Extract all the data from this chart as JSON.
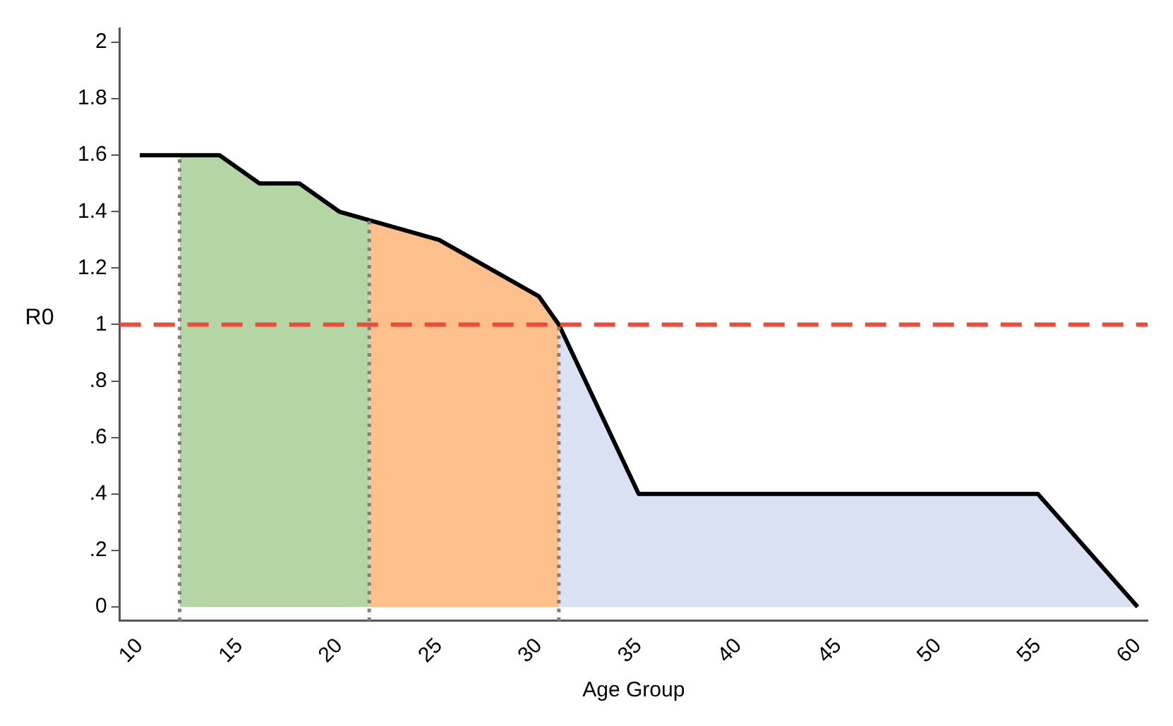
{
  "chart_data": {
    "type": "line",
    "xlabel": "Age Group",
    "ylabel": "R0",
    "xlim": [
      9,
      60.5
    ],
    "xticks": [
      10,
      15,
      20,
      25,
      30,
      35,
      40,
      45,
      50,
      55,
      60
    ],
    "ylim": [
      -0.05,
      2.05
    ],
    "yticks": [
      0,
      {
        "value": 0.2,
        "label": ".2"
      },
      {
        "value": 0.4,
        "label": ".4"
      },
      {
        "value": 0.6,
        "label": ".6"
      },
      {
        "value": 0.8,
        "label": ".8"
      },
      1,
      1.2,
      1.4,
      1.6,
      1.8,
      2
    ],
    "grid": false,
    "legend": false,
    "marker": "none",
    "series": [
      {
        "type": "area",
        "color": "#b3d6a4",
        "x": [
          12,
          14,
          16,
          18,
          20,
          21.5
        ],
        "values": [
          1.6,
          1.6,
          1.5,
          1.5,
          1.4,
          1.37
        ]
      },
      {
        "type": "area",
        "color": "#fdbf8c",
        "x": [
          21.5,
          25,
          28,
          30,
          31
        ],
        "values": [
          1.37,
          1.3,
          1.18,
          1.1,
          1.0
        ]
      },
      {
        "type": "area",
        "color": "#d9e1f2",
        "x": [
          31,
          35,
          55,
          60
        ],
        "values": [
          1.0,
          0.4,
          0.4,
          0
        ]
      },
      {
        "color": "#000000",
        "line_style": "solid",
        "x": [
          10,
          14,
          16,
          18,
          20,
          21.5,
          25,
          28,
          30,
          31,
          35,
          55,
          60
        ],
        "values": [
          1.6,
          1.6,
          1.5,
          1.5,
          1.4,
          1.37,
          1.3,
          1.18,
          1.1,
          1.0,
          0.4,
          0.4,
          0
        ]
      }
    ],
    "ref_lines": [
      {
        "axis": "y",
        "value": 1,
        "color": "#f04a3a",
        "line_style": "dashed"
      },
      {
        "axis": "x",
        "value": 12,
        "color": "#7f7f7f",
        "line_style": "dotted"
      },
      {
        "axis": "x",
        "value": 21.5,
        "color": "#7f7f7f",
        "line_style": "dotted"
      },
      {
        "axis": "x",
        "value": 31,
        "color": "#7f7f7f",
        "line_style": "dotted"
      }
    ]
  }
}
